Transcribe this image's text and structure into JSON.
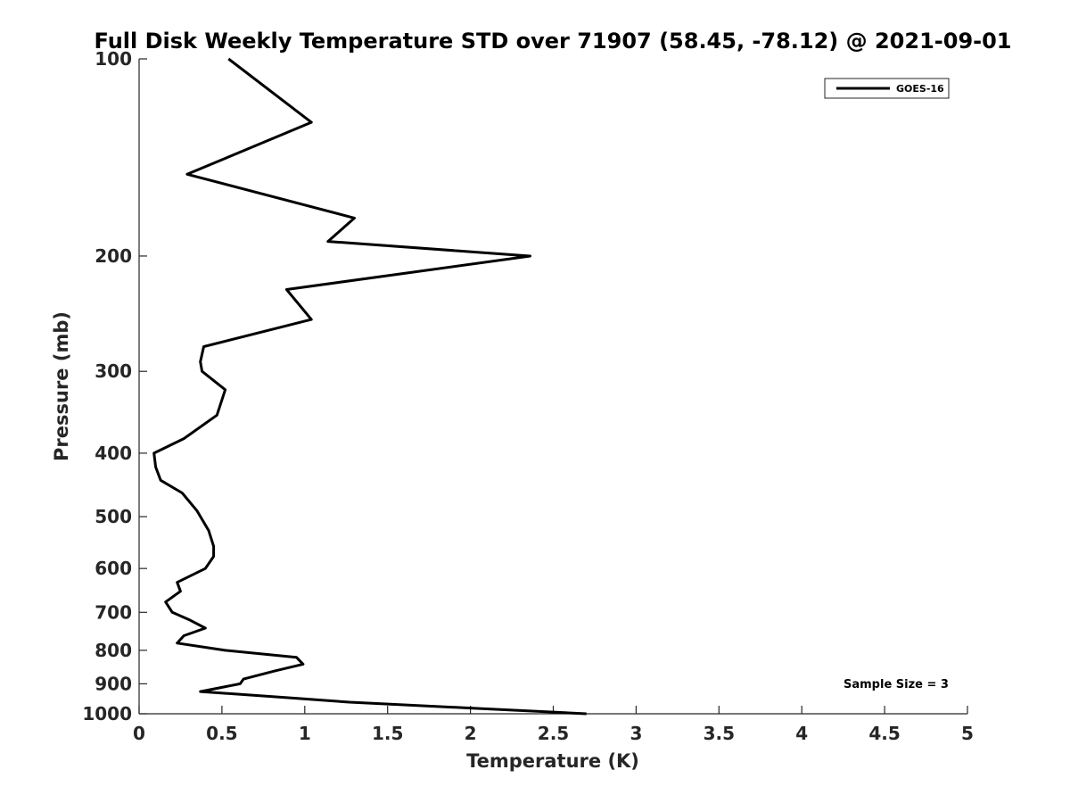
{
  "chart_data": {
    "type": "line",
    "title": "Full Disk Weekly Temperature STD over 71907 (58.45, -78.12) @ 2021-09-01",
    "xlabel": "Temperature (K)",
    "ylabel": "Pressure (mb)",
    "xlim": [
      0,
      5
    ],
    "ylim": [
      100,
      1000
    ],
    "y_scale": "log",
    "y_reversed": true,
    "xticks": [
      "0",
      "0.5",
      "1",
      "1.5",
      "2",
      "2.5",
      "3",
      "3.5",
      "4",
      "4.5",
      "5"
    ],
    "yticks": [
      "100",
      "200",
      "300",
      "400",
      "500",
      "600",
      "700",
      "800",
      "900",
      "1000"
    ],
    "grid": false,
    "legend": {
      "position": "top-right",
      "entries": [
        "GOES-16"
      ]
    },
    "annotation": "Sample Size = 3",
    "series": [
      {
        "name": "GOES-16",
        "color": "#000000",
        "points": [
          [
            0.54,
            100
          ],
          [
            1.04,
            125
          ],
          [
            0.29,
            150
          ],
          [
            1.3,
            175
          ],
          [
            1.14,
            190
          ],
          [
            2.36,
            200
          ],
          [
            0.89,
            225
          ],
          [
            1.04,
            250
          ],
          [
            0.39,
            275
          ],
          [
            0.37,
            290
          ],
          [
            0.38,
            300
          ],
          [
            0.52,
            320
          ],
          [
            0.47,
            350
          ],
          [
            0.27,
            380
          ],
          [
            0.09,
            400
          ],
          [
            0.1,
            420
          ],
          [
            0.13,
            440
          ],
          [
            0.26,
            460
          ],
          [
            0.35,
            490
          ],
          [
            0.42,
            525
          ],
          [
            0.45,
            555
          ],
          [
            0.45,
            575
          ],
          [
            0.4,
            600
          ],
          [
            0.23,
            630
          ],
          [
            0.25,
            650
          ],
          [
            0.16,
            675
          ],
          [
            0.2,
            700
          ],
          [
            0.31,
            720
          ],
          [
            0.4,
            740
          ],
          [
            0.27,
            760
          ],
          [
            0.23,
            780
          ],
          [
            0.52,
            800
          ],
          [
            0.95,
            820
          ],
          [
            0.99,
            840
          ],
          [
            0.82,
            860
          ],
          [
            0.63,
            885
          ],
          [
            0.61,
            900
          ],
          [
            0.37,
            925
          ],
          [
            0.9,
            945
          ],
          [
            1.27,
            960
          ],
          [
            2.0,
            980
          ],
          [
            2.7,
            1000
          ]
        ]
      }
    ]
  }
}
